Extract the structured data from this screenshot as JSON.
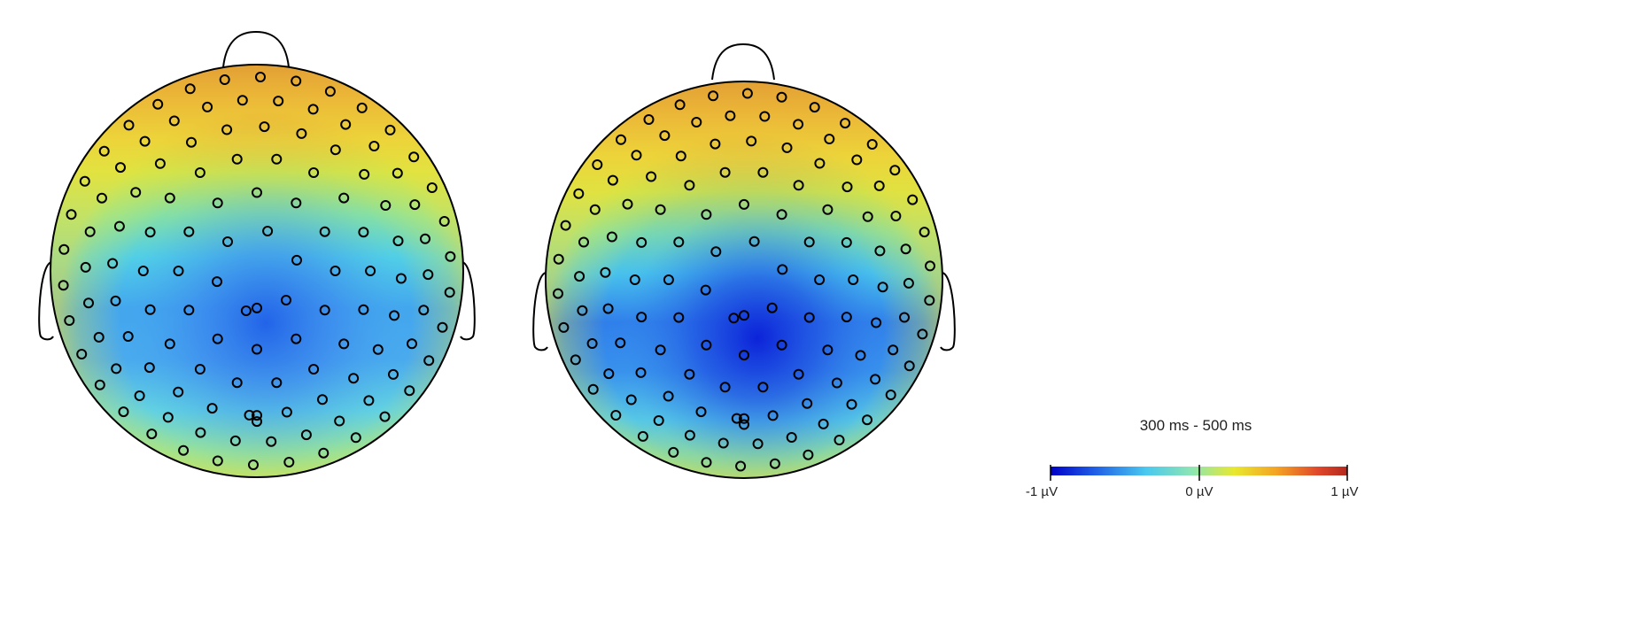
{
  "colorbar": {
    "title": "300 ms - 500 ms",
    "min_label": "-1 µV",
    "mid_label": "0 µV",
    "max_label": "1 µV",
    "colormap": [
      "#0000c8",
      "#1f5fe6",
      "#49c8ef",
      "#8fe6b0",
      "#e8e82e",
      "#f4a424",
      "#e0482a",
      "#b4281e"
    ]
  },
  "head_outline_color": "#000000",
  "electrode_color": "#000000",
  "maps": [
    {
      "id": "left",
      "field": {
        "frontal_max": 1.0,
        "minimum": -0.6,
        "minimum_location": [
          0.0,
          -0.1
        ]
      }
    },
    {
      "id": "right",
      "field": {
        "frontal_max": 1.0,
        "minimum": -0.85,
        "minimum_location": [
          0.0,
          -0.15
        ]
      }
    }
  ]
}
